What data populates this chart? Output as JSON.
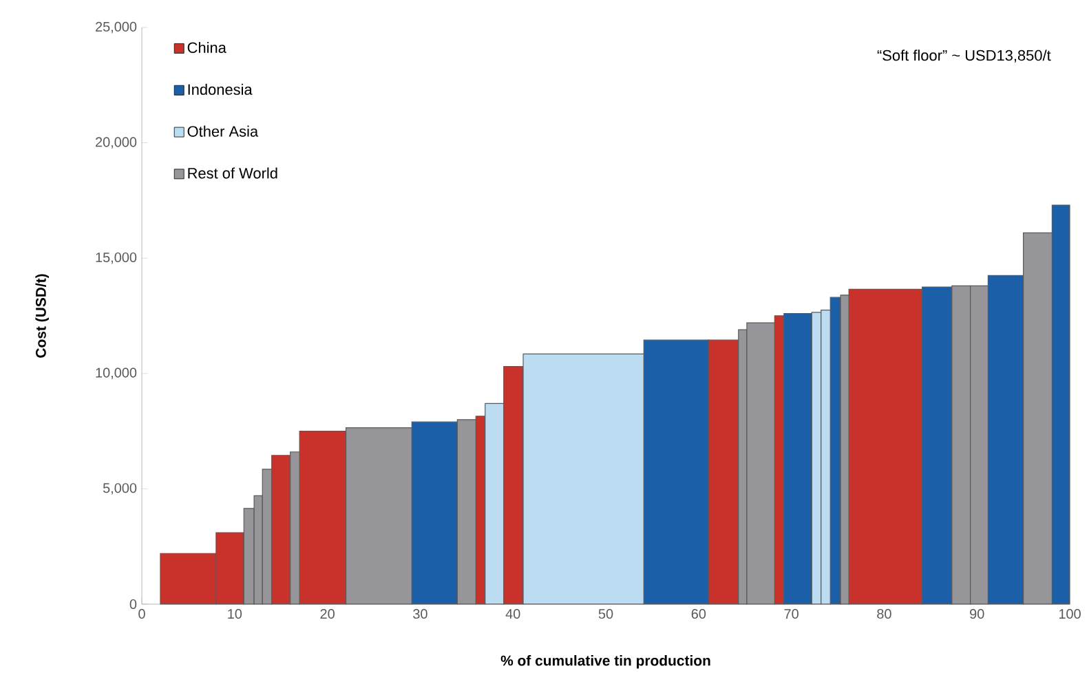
{
  "chart_data": {
    "type": "histogram",
    "xlabel": "% of cumulative tin production",
    "ylabel": "Cost (USD/t)",
    "annotations": [
      "“Soft floor” ~ USD13,850/t"
    ],
    "bins": [
      2,
      8,
      11,
      12.1,
      13,
      14,
      16,
      17,
      22,
      29.1,
      34,
      36,
      37,
      39,
      41.1,
      54.1,
      61.1,
      64.3,
      65.2,
      68.2,
      69.2,
      72.2,
      73.2,
      74.2,
      75.3,
      76.2,
      84.1,
      87.3,
      89.3,
      91.2,
      95,
      98.1,
      100
    ],
    "series": [
      {
        "name": "China",
        "color": "#c8322a",
        "values": [
          2200,
          3100,
          null,
          null,
          null,
          6450,
          null,
          7500,
          null,
          null,
          null,
          8150,
          null,
          10300,
          null,
          null,
          11450,
          null,
          null,
          12500,
          null,
          null,
          null,
          null,
          null,
          13650,
          null,
          null,
          null,
          null,
          null,
          null
        ]
      },
      {
        "name": "Indonesia",
        "color": "#1a5fa8",
        "values": [
          null,
          null,
          null,
          null,
          null,
          null,
          null,
          null,
          null,
          7900,
          null,
          null,
          null,
          null,
          null,
          11450,
          null,
          null,
          null,
          null,
          12600,
          null,
          null,
          13300,
          null,
          null,
          13750,
          null,
          null,
          14250,
          null,
          17300
        ]
      },
      {
        "name": "Other Asia",
        "color": "#bcdcf2",
        "values": [
          null,
          null,
          null,
          null,
          null,
          null,
          null,
          null,
          null,
          null,
          null,
          null,
          8700,
          null,
          10850,
          null,
          null,
          null,
          null,
          null,
          null,
          12650,
          12750,
          null,
          null,
          null,
          null,
          null,
          null,
          null,
          null,
          null
        ]
      },
      {
        "name": "Rest of World",
        "color": "#96969a",
        "values": [
          null,
          null,
          4150,
          4700,
          5850,
          null,
          6600,
          null,
          7650,
          null,
          8000,
          null,
          null,
          null,
          null,
          null,
          null,
          11900,
          12200,
          null,
          null,
          null,
          null,
          null,
          13400,
          null,
          null,
          13800,
          13800,
          null,
          16100,
          null
        ]
      }
    ],
    "legend": "top left",
    "xlim": [
      0,
      100
    ],
    "xticks": [
      0,
      10,
      20,
      30,
      40,
      50,
      60,
      70,
      80,
      90,
      100
    ],
    "ylim": [
      0,
      25000
    ],
    "yticks": [
      {
        "value": 0,
        "label": "0"
      },
      {
        "value": 5000,
        "label": "5,000"
      },
      {
        "value": 10000,
        "label": "10,000"
      },
      {
        "value": 15000,
        "label": "15,000"
      },
      {
        "value": 20000,
        "label": "20,000"
      },
      {
        "value": 25000,
        "label": "25,000"
      }
    ]
  }
}
